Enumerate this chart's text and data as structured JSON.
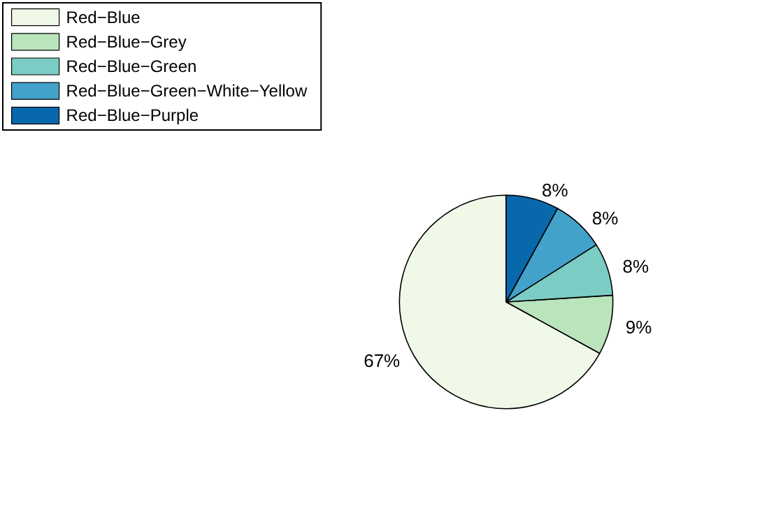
{
  "chart_data": {
    "type": "pie",
    "categories": [
      "Red−Blue",
      "Red−Blue−Grey",
      "Red−Blue−Green",
      "Red−Blue−Green−White−Yellow",
      "Red−Blue−Purple"
    ],
    "values": [
      67,
      9,
      8,
      8,
      8
    ],
    "value_labels": [
      "67%",
      "9%",
      "8%",
      "8%",
      "8%"
    ],
    "colors": [
      "#f0f9e8",
      "#bae4bc",
      "#7bccc4",
      "#43a2ca",
      "#0868ac"
    ],
    "legend": "top left"
  }
}
